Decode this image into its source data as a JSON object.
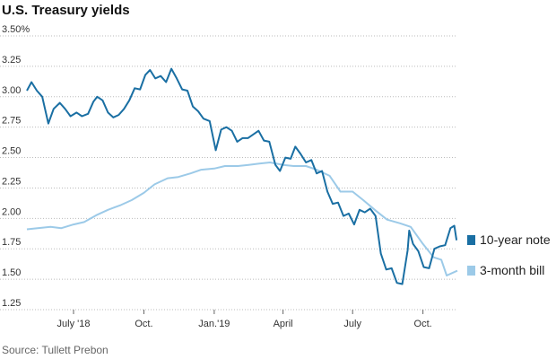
{
  "chart_data": {
    "type": "line",
    "title": "U.S. Treasury yields",
    "source": "Source: Tullett Prebon",
    "y_axis": {
      "min": 1.25,
      "max": 3.5,
      "ticks": [
        {
          "value": 3.5,
          "label": "3.50%"
        },
        {
          "value": 3.25,
          "label": "3.25"
        },
        {
          "value": 3.0,
          "label": "3.00"
        },
        {
          "value": 2.75,
          "label": "2.75"
        },
        {
          "value": 2.5,
          "label": "2.50"
        },
        {
          "value": 2.25,
          "label": "2.25"
        },
        {
          "value": 2.0,
          "label": "2.00"
        },
        {
          "value": 1.75,
          "label": "1.75"
        },
        {
          "value": 1.5,
          "label": "1.50"
        },
        {
          "value": 1.25,
          "label": "1.25"
        }
      ]
    },
    "x_axis": {
      "start": "2018-05-01",
      "end": "2019-11-15",
      "ticks": [
        {
          "date": "2018-07-01",
          "label": "July '18"
        },
        {
          "date": "2018-10-01",
          "label": "Oct."
        },
        {
          "date": "2019-01-01",
          "label": "Jan.'19"
        },
        {
          "date": "2019-04-01",
          "label": "April"
        },
        {
          "date": "2019-07-01",
          "label": "July"
        },
        {
          "date": "2019-10-01",
          "label": "Oct."
        }
      ]
    },
    "series": [
      {
        "name": "10-year note",
        "color": "#1a6fa3",
        "points": [
          [
            "2018-05-01",
            3.05
          ],
          [
            "2018-05-07",
            3.12
          ],
          [
            "2018-05-14",
            3.05
          ],
          [
            "2018-05-21",
            3.0
          ],
          [
            "2018-05-29",
            2.78
          ],
          [
            "2018-06-05",
            2.9
          ],
          [
            "2018-06-13",
            2.95
          ],
          [
            "2018-06-20",
            2.9
          ],
          [
            "2018-06-27",
            2.84
          ],
          [
            "2018-07-05",
            2.87
          ],
          [
            "2018-07-12",
            2.84
          ],
          [
            "2018-07-20",
            2.86
          ],
          [
            "2018-07-27",
            2.96
          ],
          [
            "2018-08-01",
            3.0
          ],
          [
            "2018-08-08",
            2.97
          ],
          [
            "2018-08-15",
            2.87
          ],
          [
            "2018-08-22",
            2.83
          ],
          [
            "2018-08-29",
            2.85
          ],
          [
            "2018-09-05",
            2.9
          ],
          [
            "2018-09-12",
            2.97
          ],
          [
            "2018-09-19",
            3.07
          ],
          [
            "2018-09-26",
            3.06
          ],
          [
            "2018-10-03",
            3.18
          ],
          [
            "2018-10-09",
            3.22
          ],
          [
            "2018-10-16",
            3.15
          ],
          [
            "2018-10-23",
            3.17
          ],
          [
            "2018-10-30",
            3.12
          ],
          [
            "2018-11-06",
            3.23
          ],
          [
            "2018-11-13",
            3.15
          ],
          [
            "2018-11-20",
            3.06
          ],
          [
            "2018-11-27",
            3.05
          ],
          [
            "2018-12-04",
            2.92
          ],
          [
            "2018-12-11",
            2.88
          ],
          [
            "2018-12-18",
            2.82
          ],
          [
            "2018-12-26",
            2.8
          ],
          [
            "2019-01-03",
            2.56
          ],
          [
            "2019-01-10",
            2.73
          ],
          [
            "2019-01-17",
            2.75
          ],
          [
            "2019-01-24",
            2.72
          ],
          [
            "2019-01-31",
            2.63
          ],
          [
            "2019-02-07",
            2.66
          ],
          [
            "2019-02-14",
            2.66
          ],
          [
            "2019-02-21",
            2.69
          ],
          [
            "2019-02-28",
            2.72
          ],
          [
            "2019-03-07",
            2.64
          ],
          [
            "2019-03-14",
            2.63
          ],
          [
            "2019-03-22",
            2.44
          ],
          [
            "2019-03-28",
            2.39
          ],
          [
            "2019-04-04",
            2.5
          ],
          [
            "2019-04-11",
            2.49
          ],
          [
            "2019-04-17",
            2.59
          ],
          [
            "2019-04-24",
            2.53
          ],
          [
            "2019-05-01",
            2.46
          ],
          [
            "2019-05-08",
            2.48
          ],
          [
            "2019-05-15",
            2.37
          ],
          [
            "2019-05-22",
            2.39
          ],
          [
            "2019-05-29",
            2.22
          ],
          [
            "2019-06-05",
            2.12
          ],
          [
            "2019-06-12",
            2.13
          ],
          [
            "2019-06-19",
            2.02
          ],
          [
            "2019-06-26",
            2.04
          ],
          [
            "2019-07-03",
            1.95
          ],
          [
            "2019-07-10",
            2.07
          ],
          [
            "2019-07-17",
            2.05
          ],
          [
            "2019-07-24",
            2.08
          ],
          [
            "2019-07-31",
            2.02
          ],
          [
            "2019-08-07",
            1.71
          ],
          [
            "2019-08-14",
            1.58
          ],
          [
            "2019-08-21",
            1.59
          ],
          [
            "2019-08-28",
            1.47
          ],
          [
            "2019-09-04",
            1.46
          ],
          [
            "2019-09-11",
            1.74
          ],
          [
            "2019-09-13",
            1.9
          ],
          [
            "2019-09-18",
            1.79
          ],
          [
            "2019-09-25",
            1.73
          ],
          [
            "2019-10-02",
            1.6
          ],
          [
            "2019-10-09",
            1.59
          ],
          [
            "2019-10-16",
            1.75
          ],
          [
            "2019-10-23",
            1.77
          ],
          [
            "2019-10-30",
            1.78
          ],
          [
            "2019-11-06",
            1.92
          ],
          [
            "2019-11-11",
            1.94
          ],
          [
            "2019-11-14",
            1.82
          ]
        ]
      },
      {
        "name": "3-month bill",
        "color": "#9ccae8",
        "points": [
          [
            "2018-05-01",
            1.91
          ],
          [
            "2018-05-15",
            1.92
          ],
          [
            "2018-06-01",
            1.93
          ],
          [
            "2018-06-15",
            1.92
          ],
          [
            "2018-07-01",
            1.95
          ],
          [
            "2018-07-15",
            1.97
          ],
          [
            "2018-08-01",
            2.03
          ],
          [
            "2018-08-15",
            2.07
          ],
          [
            "2018-09-01",
            2.11
          ],
          [
            "2018-09-15",
            2.15
          ],
          [
            "2018-10-01",
            2.21
          ],
          [
            "2018-10-15",
            2.28
          ],
          [
            "2018-11-01",
            2.33
          ],
          [
            "2018-11-15",
            2.34
          ],
          [
            "2018-12-01",
            2.37
          ],
          [
            "2018-12-15",
            2.4
          ],
          [
            "2019-01-01",
            2.41
          ],
          [
            "2019-01-15",
            2.43
          ],
          [
            "2019-02-01",
            2.43
          ],
          [
            "2019-02-15",
            2.44
          ],
          [
            "2019-03-01",
            2.45
          ],
          [
            "2019-03-15",
            2.46
          ],
          [
            "2019-04-01",
            2.44
          ],
          [
            "2019-04-15",
            2.43
          ],
          [
            "2019-05-01",
            2.43
          ],
          [
            "2019-05-15",
            2.4
          ],
          [
            "2019-06-01",
            2.35
          ],
          [
            "2019-06-15",
            2.22
          ],
          [
            "2019-07-01",
            2.22
          ],
          [
            "2019-07-15",
            2.15
          ],
          [
            "2019-08-01",
            2.06
          ],
          [
            "2019-08-15",
            1.99
          ],
          [
            "2019-09-01",
            1.96
          ],
          [
            "2019-09-15",
            1.93
          ],
          [
            "2019-10-01",
            1.79
          ],
          [
            "2019-10-15",
            1.68
          ],
          [
            "2019-10-25",
            1.66
          ],
          [
            "2019-11-01",
            1.53
          ],
          [
            "2019-11-08",
            1.55
          ],
          [
            "2019-11-15",
            1.57
          ]
        ]
      }
    ],
    "legend_position": "right"
  }
}
